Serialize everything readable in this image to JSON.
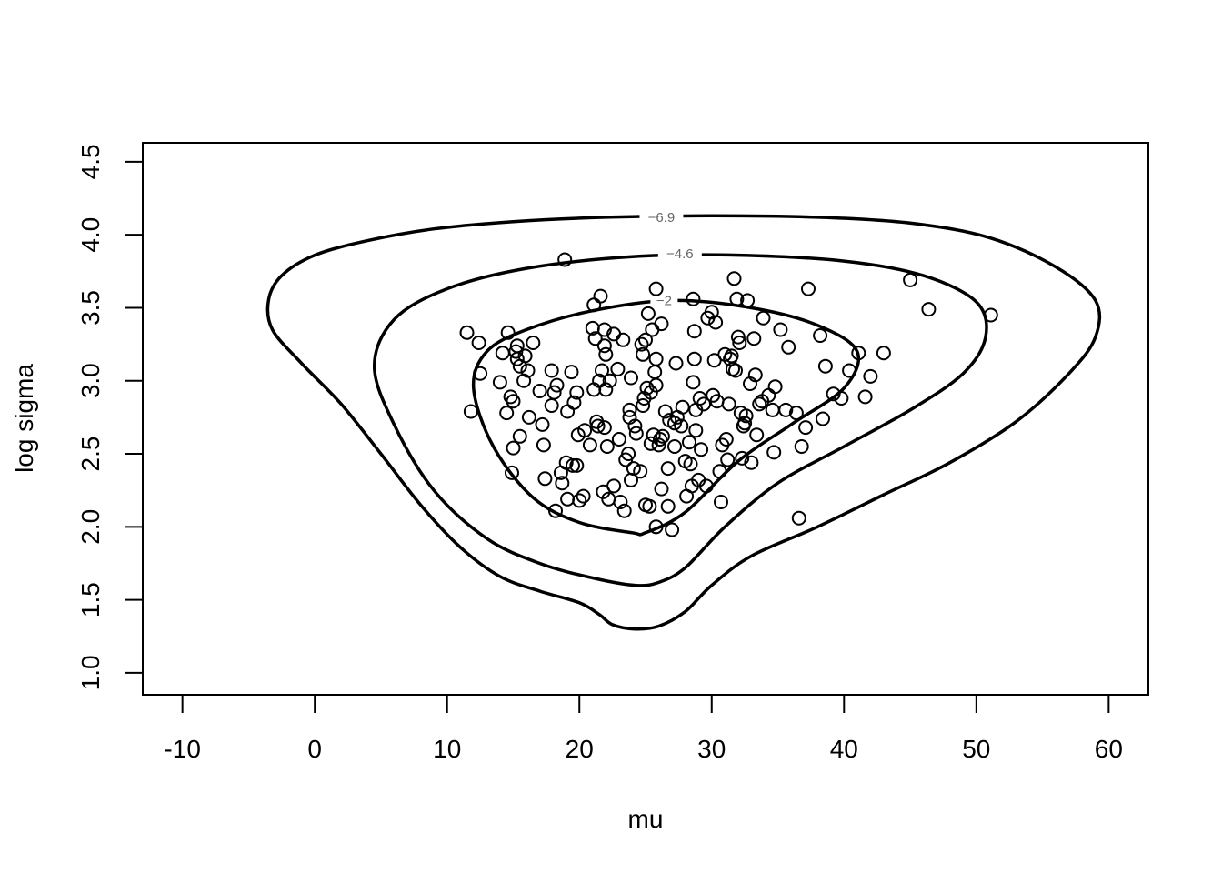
{
  "chart_data": {
    "type": "scatter",
    "xlabel": "mu",
    "ylabel": "log sigma",
    "xlim": [
      -13,
      63
    ],
    "ylim": [
      0.85,
      4.63
    ],
    "x_ticks": [
      -10,
      0,
      10,
      20,
      30,
      40,
      50,
      60
    ],
    "x_tick_labels": [
      "-10",
      "0",
      "10",
      "20",
      "30",
      "40",
      "50",
      "60"
    ],
    "y_ticks": [
      1.0,
      1.5,
      2.0,
      2.5,
      3.0,
      3.5,
      4.0,
      4.5
    ],
    "y_tick_labels": [
      "1.0",
      "1.5",
      "2.0",
      "2.5",
      "3.0",
      "3.5",
      "4.0",
      "4.5"
    ],
    "grid": false,
    "contours": [
      {
        "label": "-6.9",
        "label_at": [
          26.2,
          4.12
        ],
        "points": [
          [
            24.2,
            1.3
          ],
          [
            22.5,
            1.33
          ],
          [
            21.5,
            1.4
          ],
          [
            20,
            1.48
          ],
          [
            17,
            1.56
          ],
          [
            14,
            1.66
          ],
          [
            11,
            1.86
          ],
          [
            8,
            2.15
          ],
          [
            5,
            2.5
          ],
          [
            2,
            2.84
          ],
          [
            -1,
            3.12
          ],
          [
            -3.2,
            3.35
          ],
          [
            -3.5,
            3.55
          ],
          [
            -2.5,
            3.72
          ],
          [
            0,
            3.86
          ],
          [
            4,
            3.96
          ],
          [
            9,
            4.04
          ],
          [
            15,
            4.09
          ],
          [
            22,
            4.12
          ],
          [
            30,
            4.13
          ],
          [
            38,
            4.12
          ],
          [
            45,
            4.08
          ],
          [
            51,
            3.98
          ],
          [
            56,
            3.78
          ],
          [
            59,
            3.55
          ],
          [
            59,
            3.3
          ],
          [
            57,
            3.05
          ],
          [
            53,
            2.72
          ],
          [
            48,
            2.44
          ],
          [
            43,
            2.22
          ],
          [
            38,
            2.0
          ],
          [
            33,
            1.8
          ],
          [
            30,
            1.6
          ],
          [
            28,
            1.42
          ],
          [
            26,
            1.32
          ],
          [
            24.2,
            1.3
          ]
        ]
      },
      {
        "label": "-4.6",
        "label_at": [
          27.6,
          3.87
        ],
        "points": [
          [
            24.2,
            1.6
          ],
          [
            21,
            1.65
          ],
          [
            17,
            1.75
          ],
          [
            13,
            1.92
          ],
          [
            9,
            2.25
          ],
          [
            6,
            2.7
          ],
          [
            4.5,
            3.1
          ],
          [
            6,
            3.42
          ],
          [
            10,
            3.63
          ],
          [
            16,
            3.77
          ],
          [
            24,
            3.85
          ],
          [
            32,
            3.86
          ],
          [
            40,
            3.82
          ],
          [
            46,
            3.72
          ],
          [
            50,
            3.54
          ],
          [
            50.7,
            3.3
          ],
          [
            49,
            3.05
          ],
          [
            45,
            2.8
          ],
          [
            40,
            2.55
          ],
          [
            35,
            2.3
          ],
          [
            31,
            2.0
          ],
          [
            28,
            1.72
          ],
          [
            26,
            1.62
          ],
          [
            24.2,
            1.6
          ]
        ]
      },
      {
        "label": "-2",
        "label_at": [
          26.4,
          3.55
        ],
        "points": [
          [
            24,
            1.96
          ],
          [
            20,
            2.03
          ],
          [
            16.5,
            2.2
          ],
          [
            13.5,
            2.55
          ],
          [
            12,
            2.95
          ],
          [
            13,
            3.2
          ],
          [
            16,
            3.35
          ],
          [
            21,
            3.48
          ],
          [
            27,
            3.55
          ],
          [
            33,
            3.5
          ],
          [
            38,
            3.38
          ],
          [
            41,
            3.2
          ],
          [
            40,
            2.95
          ],
          [
            36,
            2.7
          ],
          [
            32,
            2.45
          ],
          [
            28,
            2.1
          ],
          [
            25,
            1.96
          ],
          [
            24,
            1.96
          ]
        ]
      }
    ],
    "points": [
      [
        11.5,
        3.33
      ],
      [
        11.8,
        2.79
      ],
      [
        12.4,
        3.26
      ],
      [
        12.5,
        3.05
      ],
      [
        14.0,
        2.99
      ],
      [
        14.2,
        3.19
      ],
      [
        14.5,
        2.78
      ],
      [
        14.6,
        3.33
      ],
      [
        14.8,
        2.89
      ],
      [
        14.9,
        2.37
      ],
      [
        15.0,
        2.86
      ],
      [
        15.0,
        2.54
      ],
      [
        15.2,
        3.2
      ],
      [
        15.3,
        3.15
      ],
      [
        15.3,
        3.24
      ],
      [
        15.5,
        3.1
      ],
      [
        15.5,
        2.62
      ],
      [
        15.8,
        3.0
      ],
      [
        15.9,
        3.17
      ],
      [
        16.1,
        3.07
      ],
      [
        16.2,
        2.75
      ],
      [
        16.5,
        3.26
      ],
      [
        17.0,
        2.93
      ],
      [
        17.2,
        2.7
      ],
      [
        17.3,
        2.56
      ],
      [
        17.4,
        2.33
      ],
      [
        17.9,
        2.83
      ],
      [
        17.9,
        3.07
      ],
      [
        18.1,
        2.92
      ],
      [
        18.2,
        2.11
      ],
      [
        18.3,
        2.97
      ],
      [
        18.6,
        2.37
      ],
      [
        18.7,
        2.3
      ],
      [
        18.9,
        3.83
      ],
      [
        19.0,
        2.44
      ],
      [
        19.1,
        2.79
      ],
      [
        19.1,
        2.19
      ],
      [
        19.4,
        3.06
      ],
      [
        19.5,
        2.42
      ],
      [
        19.6,
        2.85
      ],
      [
        19.8,
        2.92
      ],
      [
        19.8,
        2.42
      ],
      [
        19.9,
        2.63
      ],
      [
        20.0,
        2.18
      ],
      [
        20.3,
        2.21
      ],
      [
        20.4,
        2.66
      ],
      [
        20.8,
        2.56
      ],
      [
        21.0,
        3.36
      ],
      [
        21.1,
        3.52
      ],
      [
        21.1,
        2.94
      ],
      [
        21.2,
        3.29
      ],
      [
        21.3,
        2.72
      ],
      [
        21.4,
        2.69
      ],
      [
        21.5,
        3.0
      ],
      [
        21.6,
        3.58
      ],
      [
        21.7,
        3.07
      ],
      [
        21.8,
        2.24
      ],
      [
        21.9,
        3.35
      ],
      [
        21.9,
        3.24
      ],
      [
        21.9,
        2.68
      ],
      [
        22.0,
        2.94
      ],
      [
        22.0,
        3.18
      ],
      [
        22.1,
        2.55
      ],
      [
        22.2,
        2.19
      ],
      [
        22.3,
        3.0
      ],
      [
        22.6,
        3.32
      ],
      [
        22.6,
        2.28
      ],
      [
        22.9,
        3.08
      ],
      [
        23.0,
        2.6
      ],
      [
        23.1,
        2.17
      ],
      [
        23.3,
        3.28
      ],
      [
        23.4,
        2.11
      ],
      [
        23.5,
        2.46
      ],
      [
        23.7,
        2.5
      ],
      [
        23.8,
        2.75
      ],
      [
        23.8,
        2.8
      ],
      [
        23.9,
        3.02
      ],
      [
        23.9,
        2.32
      ],
      [
        24.1,
        2.4
      ],
      [
        24.2,
        2.69
      ],
      [
        24.3,
        2.64
      ],
      [
        24.6,
        2.38
      ],
      [
        24.7,
        3.25
      ],
      [
        24.8,
        3.18
      ],
      [
        24.8,
        2.83
      ],
      [
        24.9,
        2.88
      ],
      [
        25.0,
        3.28
      ],
      [
        25.0,
        2.15
      ],
      [
        25.1,
        2.95
      ],
      [
        25.2,
        3.46
      ],
      [
        25.3,
        2.14
      ],
      [
        25.4,
        2.57
      ],
      [
        25.4,
        2.92
      ],
      [
        25.5,
        3.35
      ],
      [
        25.6,
        2.63
      ],
      [
        25.7,
        3.06
      ],
      [
        25.8,
        3.63
      ],
      [
        25.8,
        3.15
      ],
      [
        25.8,
        2.97
      ],
      [
        25.8,
        2.0
      ],
      [
        26.0,
        2.56
      ],
      [
        26.1,
        2.6
      ],
      [
        26.2,
        2.26
      ],
      [
        26.2,
        3.39
      ],
      [
        26.3,
        2.62
      ],
      [
        26.5,
        2.79
      ],
      [
        26.7,
        2.14
      ],
      [
        26.7,
        2.4
      ],
      [
        26.8,
        2.73
      ],
      [
        27.0,
        1.98
      ],
      [
        27.2,
        2.55
      ],
      [
        27.2,
        2.71
      ],
      [
        27.3,
        3.12
      ],
      [
        27.4,
        2.75
      ],
      [
        27.7,
        2.69
      ],
      [
        27.8,
        2.82
      ],
      [
        28.0,
        2.45
      ],
      [
        28.1,
        2.21
      ],
      [
        28.3,
        2.58
      ],
      [
        28.4,
        2.43
      ],
      [
        28.5,
        2.28
      ],
      [
        28.6,
        3.56
      ],
      [
        28.6,
        2.99
      ],
      [
        28.7,
        3.15
      ],
      [
        28.7,
        3.34
      ],
      [
        28.8,
        2.66
      ],
      [
        28.8,
        2.8
      ],
      [
        29.0,
        2.32
      ],
      [
        29.1,
        2.88
      ],
      [
        29.2,
        2.53
      ],
      [
        29.4,
        2.84
      ],
      [
        29.6,
        2.28
      ],
      [
        29.7,
        3.43
      ],
      [
        30.0,
        3.47
      ],
      [
        30.1,
        2.9
      ],
      [
        30.2,
        3.14
      ],
      [
        30.3,
        3.4
      ],
      [
        30.4,
        2.86
      ],
      [
        30.6,
        2.38
      ],
      [
        30.7,
        2.17
      ],
      [
        30.8,
        2.56
      ],
      [
        31.0,
        3.18
      ],
      [
        31.1,
        2.6
      ],
      [
        31.2,
        2.46
      ],
      [
        31.3,
        2.84
      ],
      [
        31.4,
        3.15
      ],
      [
        31.5,
        3.17
      ],
      [
        31.6,
        3.08
      ],
      [
        31.7,
        3.7
      ],
      [
        31.8,
        3.07
      ],
      [
        31.9,
        3.56
      ],
      [
        32.0,
        3.3
      ],
      [
        32.1,
        3.26
      ],
      [
        32.2,
        2.78
      ],
      [
        32.3,
        2.47
      ],
      [
        32.4,
        2.69
      ],
      [
        32.5,
        2.71
      ],
      [
        32.6,
        2.76
      ],
      [
        32.7,
        3.55
      ],
      [
        32.9,
        2.98
      ],
      [
        33.0,
        2.44
      ],
      [
        33.2,
        3.29
      ],
      [
        33.3,
        3.04
      ],
      [
        33.4,
        2.63
      ],
      [
        33.6,
        2.84
      ],
      [
        33.8,
        2.86
      ],
      [
        33.9,
        3.43
      ],
      [
        34.3,
        2.9
      ],
      [
        34.6,
        2.8
      ],
      [
        34.7,
        2.51
      ],
      [
        34.8,
        2.96
      ],
      [
        35.2,
        3.35
      ],
      [
        35.6,
        2.8
      ],
      [
        35.8,
        3.23
      ],
      [
        36.4,
        2.78
      ],
      [
        36.6,
        2.06
      ],
      [
        36.8,
        2.55
      ],
      [
        37.1,
        2.68
      ],
      [
        37.3,
        3.63
      ],
      [
        38.2,
        3.31
      ],
      [
        38.4,
        2.74
      ],
      [
        38.6,
        3.1
      ],
      [
        39.2,
        2.91
      ],
      [
        39.8,
        2.88
      ],
      [
        40.4,
        3.07
      ],
      [
        41.1,
        3.19
      ],
      [
        41.6,
        2.89
      ],
      [
        42.0,
        3.03
      ],
      [
        43.0,
        3.19
      ],
      [
        45.0,
        3.69
      ],
      [
        46.4,
        3.49
      ],
      [
        51.1,
        3.45
      ]
    ]
  }
}
